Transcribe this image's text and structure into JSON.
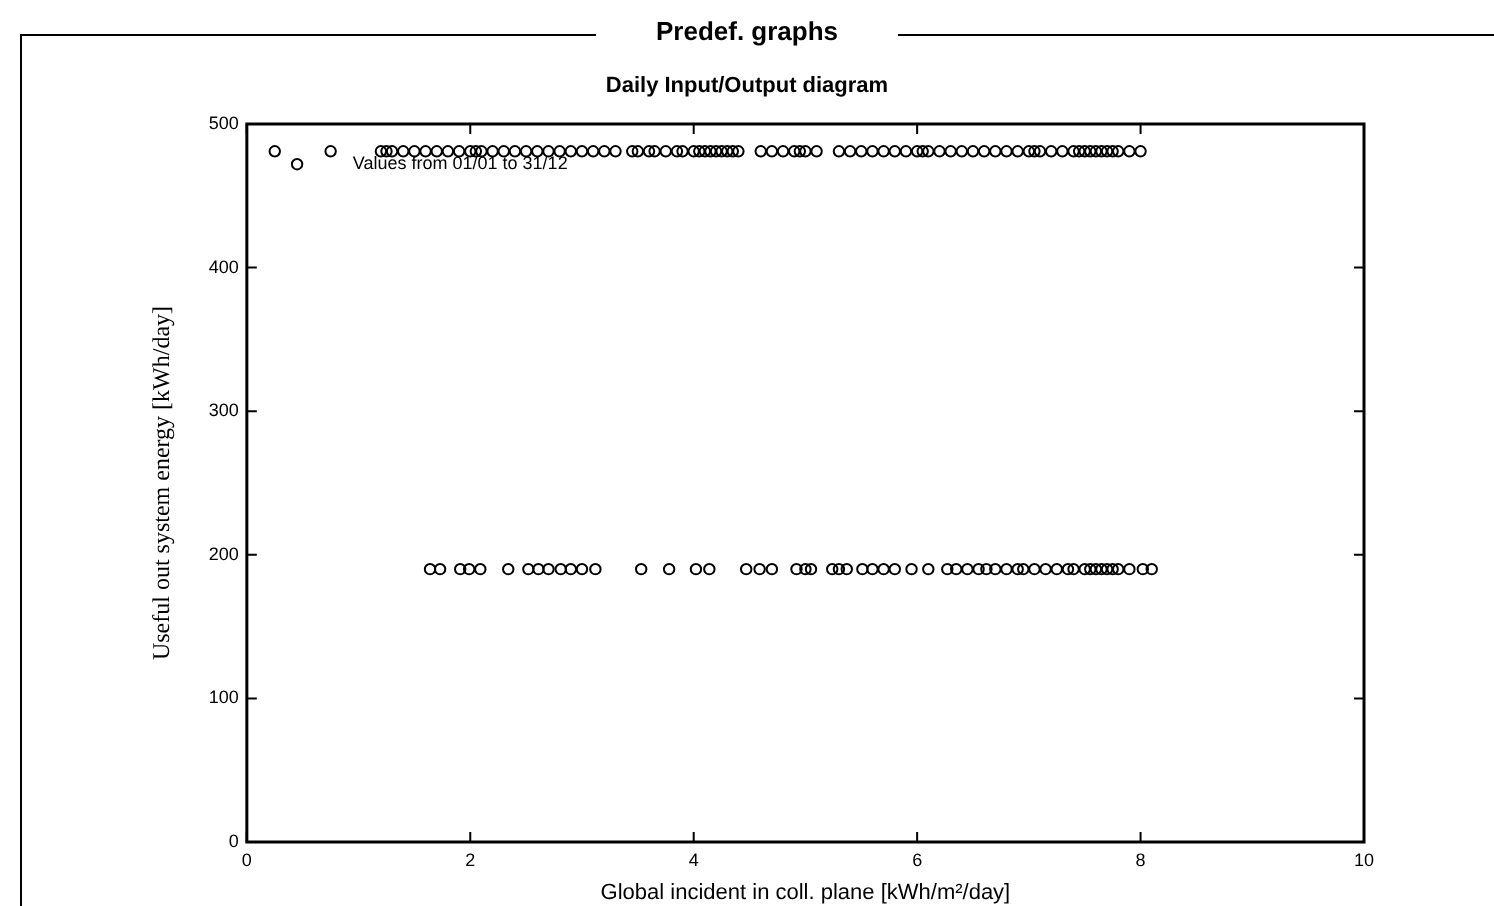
{
  "chart_data": {
    "type": "scatter",
    "title": "Predef. graphs",
    "subtitle": "Daily Input/Output diagram",
    "xlabel": "Global incident in coll. plane [kWh/m²/day]",
    "ylabel": "Useful out system energy [kWh/day]",
    "annotations": [
      "Values from 01/01 to 31/12"
    ],
    "x": [
      0.25,
      0.45,
      0.75,
      1.2,
      1.25,
      1.3,
      1.4,
      1.5,
      1.6,
      1.7,
      1.8,
      1.9,
      2.0,
      2.05,
      2.1,
      2.2,
      2.3,
      2.4,
      2.5,
      2.6,
      2.7,
      2.8,
      2.9,
      3.0,
      3.1,
      3.2,
      3.3,
      3.45,
      3.5,
      3.6,
      3.65,
      3.75,
      3.85,
      3.9,
      4.0,
      4.05,
      4.1,
      4.15,
      4.2,
      4.25,
      4.3,
      4.35,
      4.4,
      4.6,
      4.7,
      4.8,
      4.9,
      4.95,
      5.0,
      5.1,
      5.3,
      5.4,
      5.5,
      5.6,
      5.7,
      5.8,
      5.9,
      6.0,
      6.05,
      6.1,
      6.2,
      6.3,
      6.4,
      6.5,
      6.6,
      6.7,
      6.8,
      6.9,
      7.0,
      7.05,
      7.1,
      7.2,
      7.3,
      7.4,
      7.45,
      7.5,
      7.55,
      7.6,
      7.65,
      7.7,
      7.75,
      7.8,
      7.9,
      8.0,
      1.64,
      1.73,
      1.91,
      1.99,
      2.09,
      2.34,
      2.52,
      2.61,
      2.7,
      2.81,
      2.9,
      3.0,
      3.12,
      3.53,
      3.78,
      4.02,
      4.14,
      4.47,
      4.59,
      4.7,
      4.92,
      5.0,
      5.05,
      5.24,
      5.3,
      5.37,
      5.51,
      5.6,
      5.7,
      5.8,
      5.95,
      6.1,
      6.27,
      6.35,
      6.45,
      6.55,
      6.62,
      6.7,
      6.8,
      6.9,
      6.95,
      7.05,
      7.15,
      7.25,
      7.35,
      7.4,
      7.5,
      7.55,
      7.6,
      7.65,
      7.7,
      7.75,
      7.8,
      7.9,
      8.02,
      8.1
    ],
    "values": [
      481,
      472,
      481,
      481,
      481,
      481,
      481,
      481,
      481,
      481,
      481,
      481,
      481,
      481,
      481,
      481,
      481,
      481,
      481,
      481,
      481,
      481,
      481,
      481,
      481,
      481,
      481,
      481,
      481,
      481,
      481,
      481,
      481,
      481,
      481,
      481,
      481,
      481,
      481,
      481,
      481,
      481,
      481,
      481,
      481,
      481,
      481,
      481,
      481,
      481,
      481,
      481,
      481,
      481,
      481,
      481,
      481,
      481,
      481,
      481,
      481,
      481,
      481,
      481,
      481,
      481,
      481,
      481,
      481,
      481,
      481,
      481,
      481,
      481,
      481,
      481,
      481,
      481,
      481,
      481,
      481,
      481,
      481,
      481,
      190,
      190,
      190,
      190,
      190,
      190,
      190,
      190,
      190,
      190,
      190,
      190,
      190,
      190,
      190,
      190,
      190,
      190,
      190,
      190,
      190,
      190,
      190,
      190,
      190,
      190,
      190,
      190,
      190,
      190,
      190,
      190,
      190,
      190,
      190,
      190,
      190,
      190,
      190,
      190,
      190,
      190,
      190,
      190,
      190,
      190,
      190,
      190,
      190,
      190,
      190,
      190,
      190,
      190,
      190,
      190
    ],
    "color": "#000000",
    "marker": "circle",
    "xlim": [
      0,
      10
    ],
    "xticks": [
      0,
      2,
      4,
      6,
      8,
      10
    ],
    "ylim": [
      0,
      500
    ],
    "yticks": [
      0,
      100,
      200,
      300,
      400,
      500
    ],
    "grid": false,
    "legend": false
  }
}
